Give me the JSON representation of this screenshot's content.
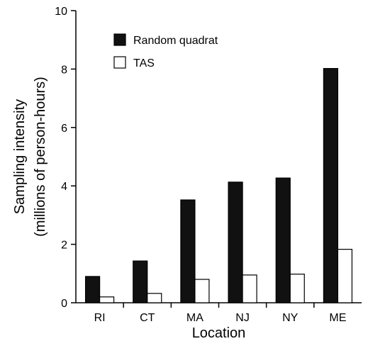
{
  "chart_data": {
    "type": "bar",
    "categories": [
      "RI",
      "CT",
      "MA",
      "NJ",
      "NY",
      "ME"
    ],
    "series": [
      {
        "name": "Random quadrat",
        "values": [
          0.9,
          1.43,
          3.52,
          4.13,
          4.27,
          8.02
        ],
        "color": "#111111"
      },
      {
        "name": "TAS",
        "values": [
          0.2,
          0.32,
          0.8,
          0.95,
          0.98,
          1.83
        ],
        "color": "#ffffff"
      }
    ],
    "title": "",
    "xlabel": "Location",
    "ylabel": [
      "Sampling intensity",
      "(millions of person-hours)"
    ],
    "ylim": [
      0,
      10
    ],
    "yticks": [
      0,
      2,
      4,
      6,
      8,
      10
    ],
    "grid": false,
    "legend_position": "top-left"
  }
}
